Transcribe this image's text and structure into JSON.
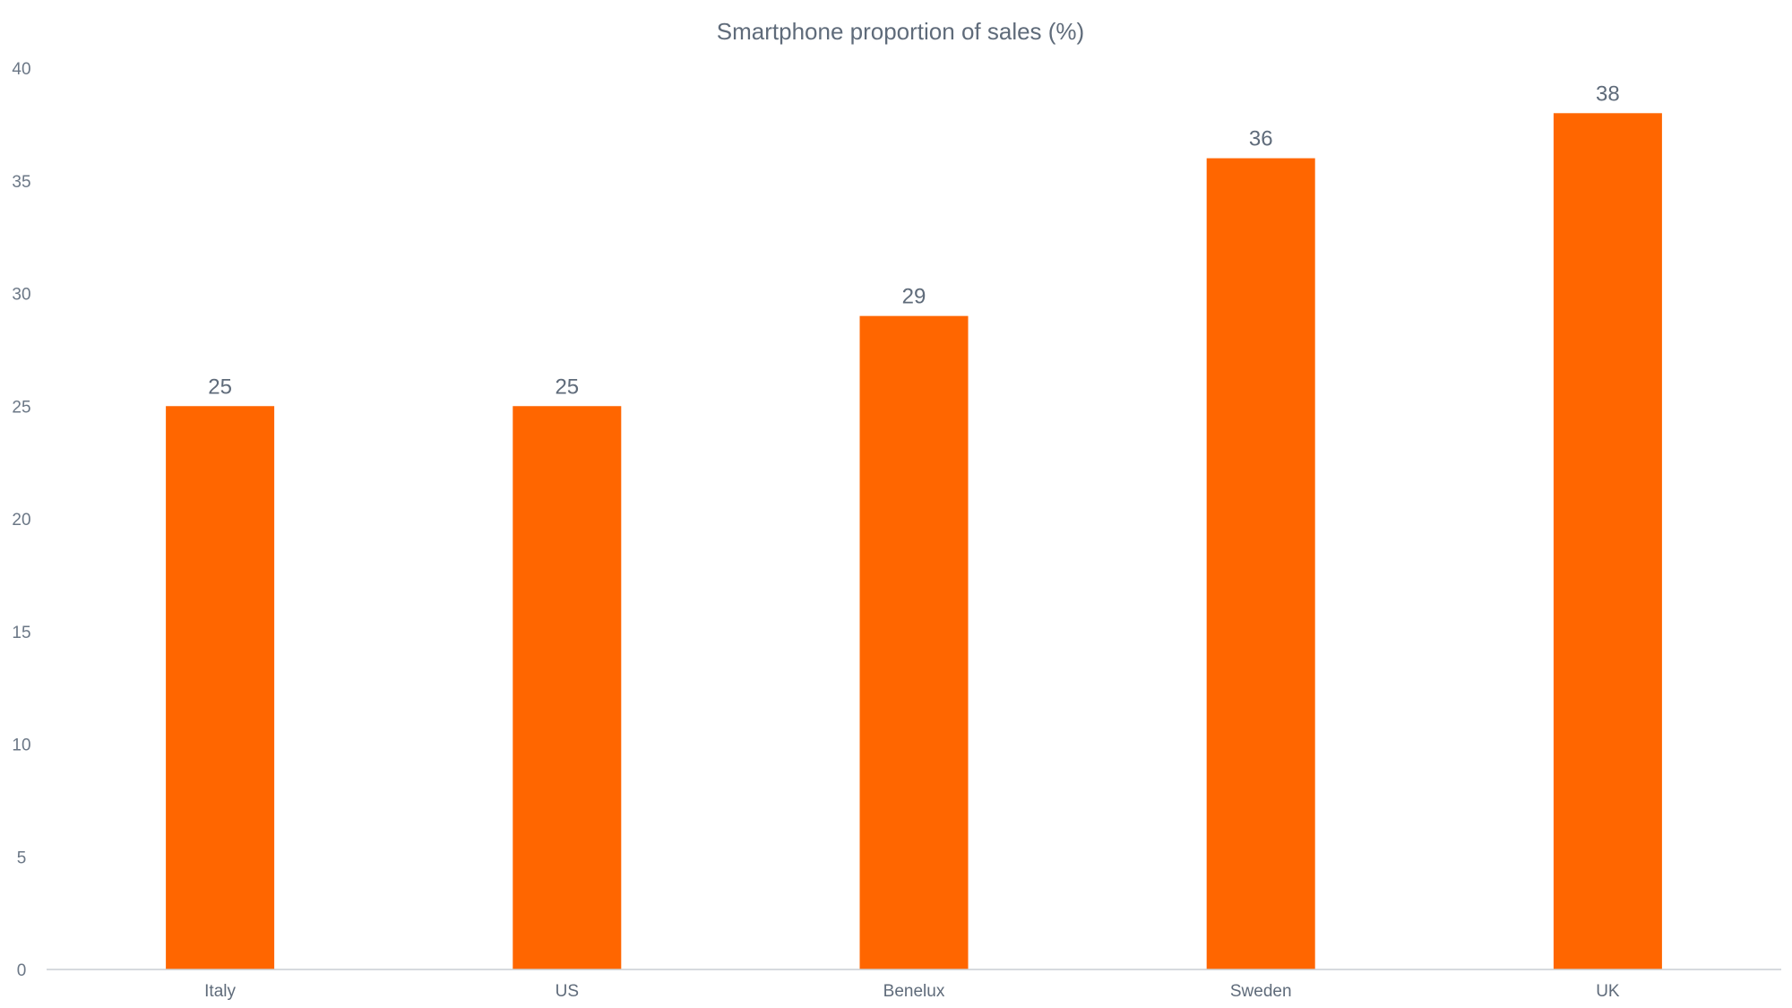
{
  "chart_data": {
    "type": "bar",
    "title": "Smartphone proportion of sales (%)",
    "xlabel": "",
    "ylabel": "",
    "categories": [
      "Italy",
      "US",
      "Benelux",
      "Sweden",
      "UK"
    ],
    "values": [
      25,
      25,
      29,
      36,
      38
    ],
    "data_labels": [
      "25",
      "25",
      "29",
      "36",
      "38"
    ],
    "y_ticks": [
      "0",
      "5",
      "10",
      "15",
      "20",
      "25",
      "30",
      "35",
      "40"
    ],
    "ylim": [
      0,
      40
    ],
    "grid": false,
    "legend": "none",
    "bar_color": "#ff6600"
  }
}
